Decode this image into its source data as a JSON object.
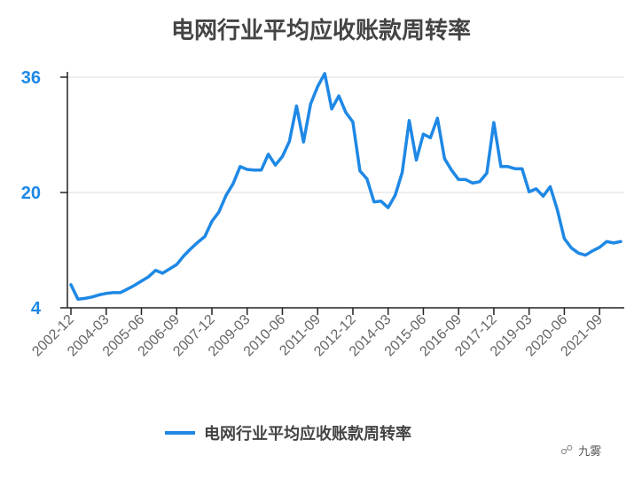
{
  "chart_data": {
    "type": "line",
    "title": "电网行业平均应收账款周转率",
    "yticks": [
      "36",
      "20",
      "4"
    ],
    "ylim": [
      4,
      36
    ],
    "grid": "horizontal",
    "legend_position": "bottom",
    "color": "#1e88e5",
    "x_tick_labels": [
      "2002-12",
      "2004-03",
      "2005-06",
      "2006-09",
      "2007-12",
      "2009-03",
      "2010-06",
      "2011-09",
      "2012-12",
      "2014-03",
      "2015-06",
      "2016-09",
      "2017-12",
      "2019-03",
      "2020-06",
      "2021-09"
    ],
    "series": [
      {
        "name": "电网行业平均应收账款周转率",
        "values": [
          7.2,
          5.2,
          5.3,
          5.5,
          5.8,
          6.0,
          6.1,
          6.1,
          6.6,
          7.1,
          7.7,
          8.3,
          9.2,
          8.8,
          9.4,
          10.0,
          11.2,
          12.2,
          13.1,
          13.9,
          16.0,
          17.3,
          19.6,
          21.2,
          23.6,
          23.2,
          23.1,
          23.1,
          25.3,
          23.8,
          25.0,
          27.1,
          32.0,
          27.0,
          32.3,
          34.7,
          36.5,
          31.6,
          33.4,
          31.1,
          29.8,
          23.0,
          21.9,
          18.7,
          18.8,
          17.9,
          19.6,
          22.8,
          30.0,
          24.5,
          28.1,
          27.6,
          30.3,
          24.7,
          23.1,
          21.8,
          21.8,
          21.3,
          21.5,
          22.7,
          29.7,
          23.6,
          23.6,
          23.3,
          23.3,
          20.1,
          20.5,
          19.5,
          20.8,
          17.6,
          13.6,
          12.3,
          11.6,
          11.3,
          11.9,
          12.4,
          13.2,
          13.0,
          13.2
        ]
      }
    ]
  },
  "legend": {
    "label": "电网行业平均应收账款周转率"
  },
  "watermark": {
    "icon": "wechat-icon",
    "text": "九雾"
  }
}
